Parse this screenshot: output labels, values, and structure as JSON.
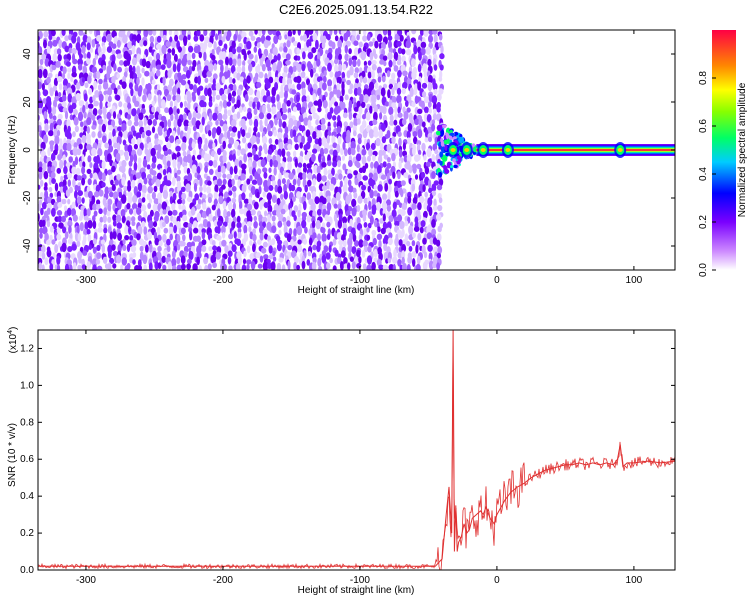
{
  "chart_data": [
    {
      "type": "heatmap",
      "title": "C2E6.2025.091.13.54.R22",
      "xlabel": "Height of straight line (km)",
      "ylabel": "Frequency (Hz)",
      "xlim": [
        -335,
        130
      ],
      "ylim": [
        -50,
        50
      ],
      "x_ticks": [
        "-300",
        "-200",
        "-100",
        "0",
        "100"
      ],
      "y_ticks": [
        "-40",
        "-20",
        "0",
        "20",
        "40"
      ],
      "colorbar": {
        "label": "Normalized spectral amplitude",
        "range": [
          0,
          1
        ],
        "ticks": [
          "0.0",
          "0.2",
          "0.4",
          "0.6",
          "0.8"
        ]
      },
      "noise_region_x": [
        -335,
        -43
      ],
      "transition_region_x": [
        -43,
        -15
      ],
      "signal_line": {
        "x": [
          -15,
          130
        ],
        "frequency_hz": 0,
        "amplitude": 1.0,
        "bright_spots_x": [
          -32,
          -22,
          -10,
          8,
          90
        ]
      }
    },
    {
      "type": "line",
      "xlabel": "Height of straight line (km)",
      "ylabel": "SNR (10 * v/v)",
      "multiplier": "(x10",
      "multiplier_exp": "4",
      "multiplier_close": ")",
      "xlim": [
        -335,
        130
      ],
      "ylim": [
        0,
        1.3
      ],
      "x_ticks": [
        "-300",
        "-200",
        "-100",
        "0",
        "100"
      ],
      "y_ticks": [
        "0.0",
        "0.2",
        "0.4",
        "0.6",
        "0.8",
        "1.0",
        "1.2"
      ],
      "color": "#e03030",
      "series": [
        {
          "x": [
            -335,
            -300,
            -250,
            -200,
            -150,
            -100,
            -60,
            -45,
            -40,
            -37,
            -35,
            -33,
            -32,
            -31,
            -30,
            -29,
            -28,
            -26,
            -24,
            -22,
            -20,
            -18,
            -15,
            -12,
            -10,
            -8,
            -5,
            -2,
            0,
            3,
            6,
            10,
            15,
            20,
            25,
            30,
            35,
            40,
            45,
            50,
            55,
            60,
            65,
            70,
            75,
            80,
            85,
            88,
            90,
            92,
            95,
            100,
            110,
            120,
            130
          ],
          "values": [
            0.02,
            0.02,
            0.02,
            0.02,
            0.02,
            0.02,
            0.02,
            0.02,
            0.06,
            0.3,
            0.45,
            0.2,
            1.3,
            0.1,
            0.35,
            0.1,
            0.15,
            0.18,
            0.25,
            0.2,
            0.22,
            0.28,
            0.3,
            0.32,
            0.3,
            0.34,
            0.28,
            0.25,
            0.3,
            0.34,
            0.38,
            0.42,
            0.45,
            0.47,
            0.5,
            0.52,
            0.54,
            0.55,
            0.56,
            0.57,
            0.57,
            0.58,
            0.57,
            0.58,
            0.57,
            0.58,
            0.57,
            0.6,
            0.68,
            0.56,
            0.58,
            0.58,
            0.59,
            0.58,
            0.59
          ]
        }
      ]
    }
  ]
}
